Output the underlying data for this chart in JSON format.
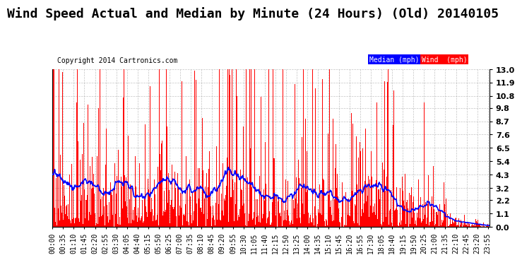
{
  "title": "Wind Speed Actual and Median by Minute (24 Hours) (Old) 20140105",
  "copyright": "Copyright 2014 Cartronics.com",
  "legend_median_label": "Median (mph)",
  "legend_wind_label": "Wind  (mph)",
  "legend_median_color": "#0000ff",
  "legend_median_bg": "#0000ff",
  "legend_wind_bg": "#ff0000",
  "legend_wind_color": "#ffffff",
  "bar_color": "#ff0000",
  "line_color": "#0000ff",
  "background_color": "#ffffff",
  "grid_color": "#aaaaaa",
  "ylabel_right_ticks": [
    0.0,
    1.1,
    2.2,
    3.2,
    4.3,
    5.4,
    6.5,
    7.6,
    8.7,
    9.8,
    10.8,
    11.9,
    13.0
  ],
  "ylim": [
    0.0,
    13.0
  ],
  "title_fontsize": 13,
  "tick_fontsize": 7,
  "minutes_per_day": 1440
}
